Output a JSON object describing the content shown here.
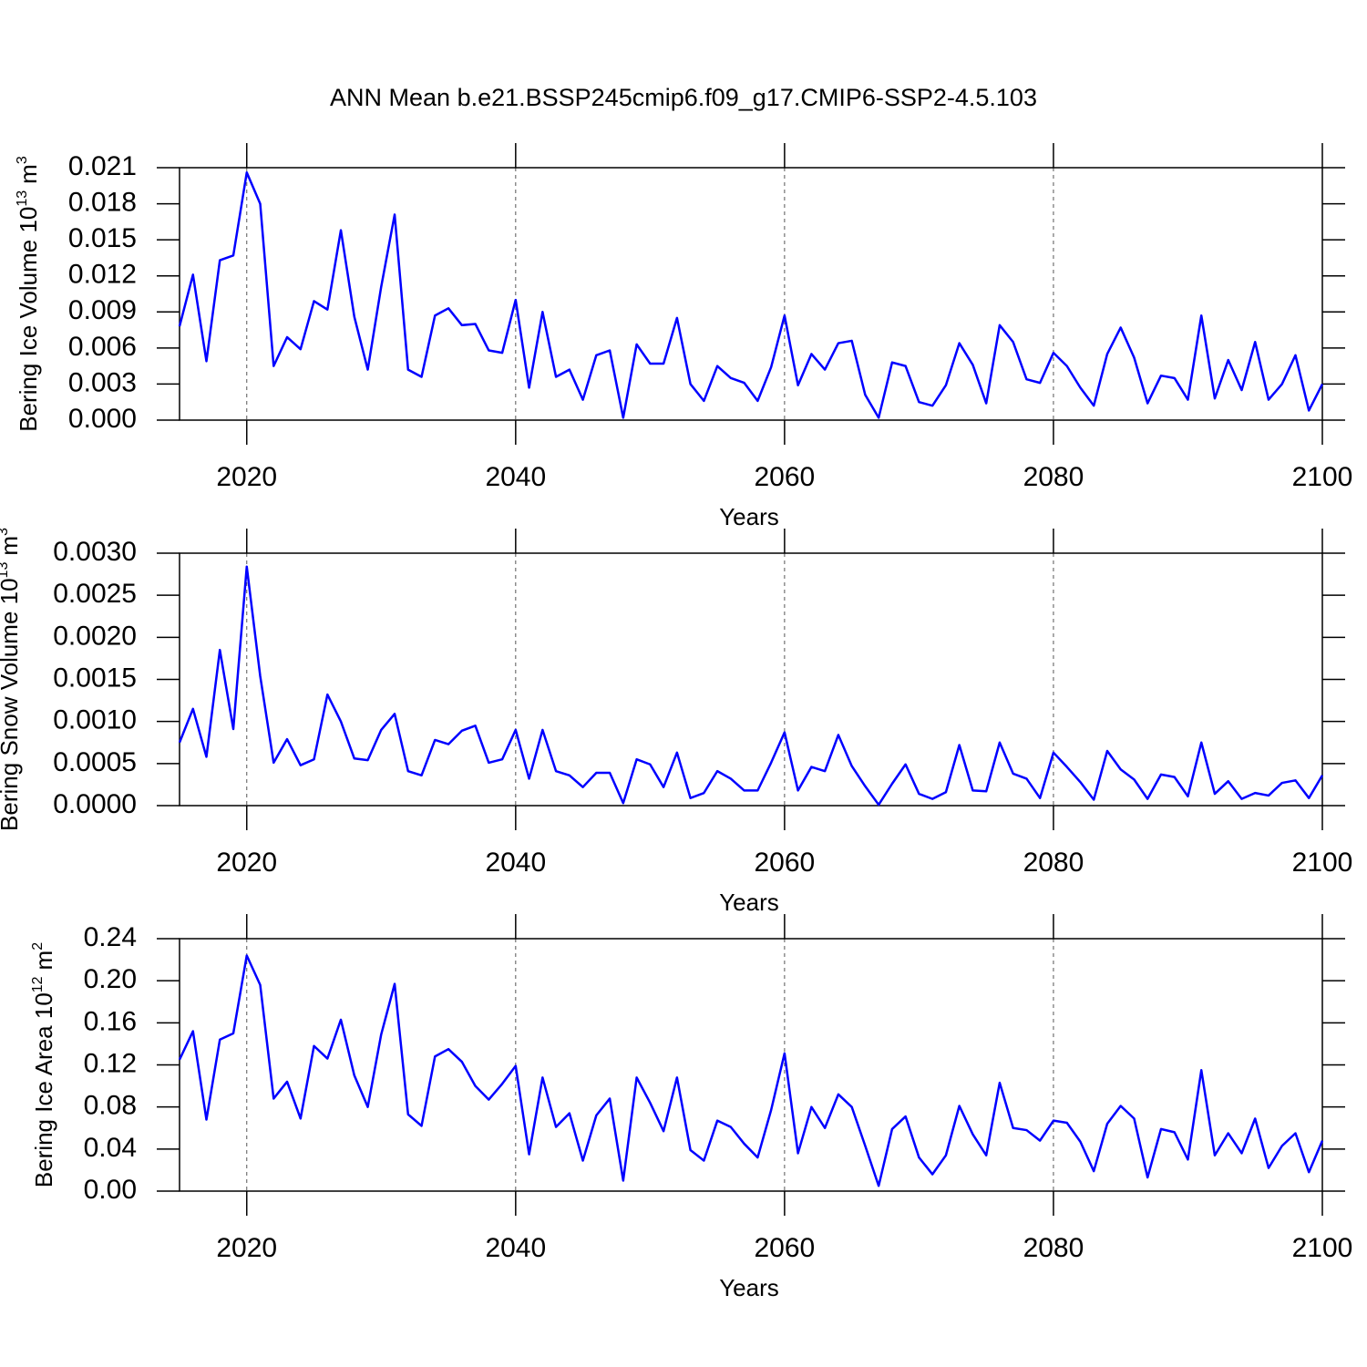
{
  "title": "ANN Mean b.e21.BSSP245cmip6.f09_g17.CMIP6-SSP2-4.5.103",
  "chart_data": [
    {
      "type": "line",
      "ylabel_parts": [
        "Bering Ice Volume 10",
        "13",
        "m",
        "3"
      ],
      "xlabel": "Years",
      "grid": "x",
      "x": [
        2015,
        2016,
        2017,
        2018,
        2019,
        2020,
        2021,
        2022,
        2023,
        2024,
        2025,
        2026,
        2027,
        2028,
        2029,
        2030,
        2031,
        2032,
        2033,
        2034,
        2035,
        2036,
        2037,
        2038,
        2039,
        2040,
        2041,
        2042,
        2043,
        2044,
        2045,
        2046,
        2047,
        2048,
        2049,
        2050,
        2051,
        2052,
        2053,
        2054,
        2055,
        2056,
        2057,
        2058,
        2059,
        2060,
        2061,
        2062,
        2063,
        2064,
        2065,
        2066,
        2067,
        2068,
        2069,
        2070,
        2071,
        2072,
        2073,
        2074,
        2075,
        2076,
        2077,
        2078,
        2079,
        2080,
        2081,
        2082,
        2083,
        2084,
        2085,
        2086,
        2087,
        2088,
        2089,
        2090,
        2091,
        2092,
        2093,
        2094,
        2095,
        2096,
        2097,
        2098,
        2099,
        2100
      ],
      "series": [
        {
          "color": "#0000ff",
          "values": [
            0.0078,
            0.0121,
            0.0049,
            0.0133,
            0.0137,
            0.0206,
            0.018,
            0.0045,
            0.0069,
            0.0059,
            0.0099,
            0.0092,
            0.0158,
            0.0086,
            0.0042,
            0.0111,
            0.0171,
            0.0042,
            0.0036,
            0.0087,
            0.0093,
            0.0079,
            0.008,
            0.0058,
            0.0056,
            0.01,
            0.0027,
            0.009,
            0.0036,
            0.0042,
            0.0017,
            0.0054,
            0.0058,
            0.0002,
            0.0063,
            0.0047,
            0.0047,
            0.0085,
            0.003,
            0.0016,
            0.0045,
            0.0035,
            0.0031,
            0.0016,
            0.0044,
            0.0087,
            0.0029,
            0.0055,
            0.0042,
            0.0064,
            0.0066,
            0.0021,
            0.0002,
            0.0048,
            0.0045,
            0.0015,
            0.0012,
            0.0029,
            0.0064,
            0.0046,
            0.0014,
            0.0079,
            0.0065,
            0.0034,
            0.0031,
            0.0056,
            0.0045,
            0.0027,
            0.0012,
            0.0055,
            0.0077,
            0.0052,
            0.0014,
            0.0037,
            0.0035,
            0.0017,
            0.0087,
            0.0018,
            0.005,
            0.0025,
            0.0065,
            0.0017,
            0.003,
            0.0054,
            0.0008,
            0.003
          ]
        }
      ],
      "xlim": [
        2015,
        2100
      ],
      "xticks": [
        2020,
        2040,
        2060,
        2080,
        2100
      ],
      "ylim": [
        0,
        0.021
      ],
      "yticks": [
        {
          "value": 0,
          "label": "0.000"
        },
        0.003,
        0.006,
        0.009,
        0.012,
        0.015,
        0.018,
        0.021
      ]
    },
    {
      "type": "line",
      "ylabel_parts": [
        "Bering Snow Volume 10",
        "13",
        "m",
        "3"
      ],
      "xlabel": "Years",
      "grid": "x",
      "x": [
        2015,
        2016,
        2017,
        2018,
        2019,
        2020,
        2021,
        2022,
        2023,
        2024,
        2025,
        2026,
        2027,
        2028,
        2029,
        2030,
        2031,
        2032,
        2033,
        2034,
        2035,
        2036,
        2037,
        2038,
        2039,
        2040,
        2041,
        2042,
        2043,
        2044,
        2045,
        2046,
        2047,
        2048,
        2049,
        2050,
        2051,
        2052,
        2053,
        2054,
        2055,
        2056,
        2057,
        2058,
        2059,
        2060,
        2061,
        2062,
        2063,
        2064,
        2065,
        2066,
        2067,
        2068,
        2069,
        2070,
        2071,
        2072,
        2073,
        2074,
        2075,
        2076,
        2077,
        2078,
        2079,
        2080,
        2081,
        2082,
        2083,
        2084,
        2085,
        2086,
        2087,
        2088,
        2089,
        2090,
        2091,
        2092,
        2093,
        2094,
        2095,
        2096,
        2097,
        2098,
        2099,
        2100
      ],
      "series": [
        {
          "color": "#0000ff",
          "values": [
            0.00075,
            0.00115,
            0.00058,
            0.00185,
            0.00091,
            0.00284,
            0.00154,
            0.00051,
            0.00079,
            0.00048,
            0.00055,
            0.00132,
            0.001,
            0.00056,
            0.00054,
            0.0009,
            0.00109,
            0.00041,
            0.00036,
            0.00078,
            0.00073,
            0.00089,
            0.00095,
            0.00051,
            0.00055,
            0.0009,
            0.00032,
            0.0009,
            0.00041,
            0.00036,
            0.00022,
            0.00039,
            0.00039,
            3e-05,
            0.00055,
            0.00049,
            0.00022,
            0.00063,
            9e-05,
            0.00015,
            0.00041,
            0.00032,
            0.00018,
            0.00018,
            0.00051,
            0.00087,
            0.00018,
            0.00046,
            0.00041,
            0.00084,
            0.00047,
            0.00023,
            1e-05,
            0.00026,
            0.00049,
            0.00014,
            8e-05,
            0.00016,
            0.00072,
            0.00018,
            0.00017,
            0.00075,
            0.00038,
            0.00032,
            9e-05,
            0.00063,
            0.00046,
            0.00028,
            7e-05,
            0.00065,
            0.00043,
            0.00031,
            8e-05,
            0.00037,
            0.00034,
            0.00011,
            0.00075,
            0.00014,
            0.00029,
            8e-05,
            0.00015,
            0.00012,
            0.00027,
            0.0003,
            9e-05,
            0.00036
          ]
        }
      ],
      "xlim": [
        2015,
        2100
      ],
      "xticks": [
        2020,
        2040,
        2060,
        2080,
        2100
      ],
      "ylim": [
        0,
        0.003
      ],
      "yticks": [
        {
          "value": 0,
          "label": "0.0000"
        },
        0.0005,
        {
          "value": 0.001,
          "label": "0.0010"
        },
        0.0015,
        {
          "value": 0.002,
          "label": "0.0020"
        },
        0.0025,
        {
          "value": 0.003,
          "label": "0.0030"
        }
      ]
    },
    {
      "type": "line",
      "ylabel_parts": [
        "Bering Ice Area 10",
        "12",
        "m",
        "2"
      ],
      "xlabel": "Years",
      "grid": "x",
      "x": [
        2015,
        2016,
        2017,
        2018,
        2019,
        2020,
        2021,
        2022,
        2023,
        2024,
        2025,
        2026,
        2027,
        2028,
        2029,
        2030,
        2031,
        2032,
        2033,
        2034,
        2035,
        2036,
        2037,
        2038,
        2039,
        2040,
        2041,
        2042,
        2043,
        2044,
        2045,
        2046,
        2047,
        2048,
        2049,
        2050,
        2051,
        2052,
        2053,
        2054,
        2055,
        2056,
        2057,
        2058,
        2059,
        2060,
        2061,
        2062,
        2063,
        2064,
        2065,
        2066,
        2067,
        2068,
        2069,
        2070,
        2071,
        2072,
        2073,
        2074,
        2075,
        2076,
        2077,
        2078,
        2079,
        2080,
        2081,
        2082,
        2083,
        2084,
        2085,
        2086,
        2087,
        2088,
        2089,
        2090,
        2091,
        2092,
        2093,
        2094,
        2095,
        2096,
        2097,
        2098,
        2099,
        2100
      ],
      "series": [
        {
          "color": "#0000ff",
          "values": [
            0.125,
            0.152,
            0.068,
            0.144,
            0.15,
            0.224,
            0.196,
            0.088,
            0.104,
            0.069,
            0.138,
            0.126,
            0.163,
            0.11,
            0.08,
            0.149,
            0.197,
            0.073,
            0.062,
            0.128,
            0.135,
            0.123,
            0.1,
            0.087,
            0.102,
            0.119,
            0.035,
            0.108,
            0.061,
            0.074,
            0.029,
            0.072,
            0.088,
            0.01,
            0.108,
            0.084,
            0.057,
            0.108,
            0.039,
            0.029,
            0.067,
            0.061,
            0.045,
            0.032,
            0.077,
            0.131,
            0.036,
            0.08,
            0.06,
            0.092,
            0.08,
            0.043,
            0.005,
            0.059,
            0.071,
            0.032,
            0.016,
            0.034,
            0.081,
            0.054,
            0.034,
            0.103,
            0.06,
            0.058,
            0.048,
            0.067,
            0.065,
            0.047,
            0.019,
            0.064,
            0.081,
            0.069,
            0.013,
            0.059,
            0.056,
            0.03,
            0.115,
            0.034,
            0.055,
            0.036,
            0.069,
            0.022,
            0.043,
            0.055,
            0.018,
            0.048
          ]
        }
      ],
      "xlim": [
        2015,
        2100
      ],
      "xticks": [
        2020,
        2040,
        2060,
        2080,
        2100
      ],
      "ylim": [
        0,
        0.24
      ],
      "yticks": [
        {
          "value": 0,
          "label": "0.00"
        },
        0.04,
        0.08,
        0.12,
        0.16,
        {
          "value": 0.2,
          "label": "0.20"
        },
        0.24
      ]
    }
  ]
}
